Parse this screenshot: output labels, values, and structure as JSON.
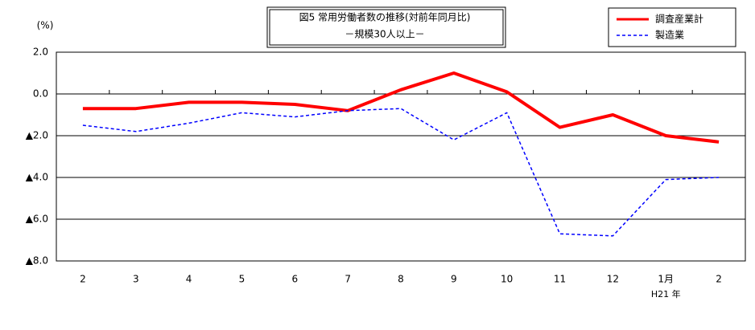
{
  "chart_data": {
    "type": "line",
    "title": "図5 常用労働者数の推移(対前年同月比)",
    "subtitle": "－規模30人以上－",
    "y_unit": "(%)",
    "x_note": "H21 年",
    "categories": [
      "2",
      "3",
      "4",
      "5",
      "6",
      "7",
      "8",
      "9",
      "10",
      "11",
      "12",
      "1月",
      "2"
    ],
    "series": [
      {
        "name": "調査産業計",
        "color": "#ff0000",
        "line_style": "solid",
        "values": [
          -0.7,
          -0.7,
          -0.4,
          -0.4,
          -0.5,
          -0.8,
          0.2,
          1.0,
          0.1,
          -1.6,
          -1.0,
          -2.0,
          -2.3
        ]
      },
      {
        "name": "製造業",
        "color": "#0000ff",
        "line_style": "dashed",
        "values": [
          -1.5,
          -1.8,
          -1.4,
          -0.9,
          -1.1,
          -0.8,
          -0.7,
          -2.2,
          -0.9,
          -6.7,
          -6.8,
          -4.1,
          -4.0
        ]
      }
    ],
    "ylim": [
      -8,
      2
    ],
    "yticks": [
      {
        "value": 2,
        "label": "2.0"
      },
      {
        "value": 0,
        "label": "0.0"
      },
      {
        "value": -2,
        "label": "▲2.0"
      },
      {
        "value": -4,
        "label": "▲4.0"
      },
      {
        "value": -6,
        "label": "▲6.0"
      },
      {
        "value": -8,
        "label": "▲8.0"
      }
    ],
    "grid": true,
    "legend": "top-right"
  }
}
